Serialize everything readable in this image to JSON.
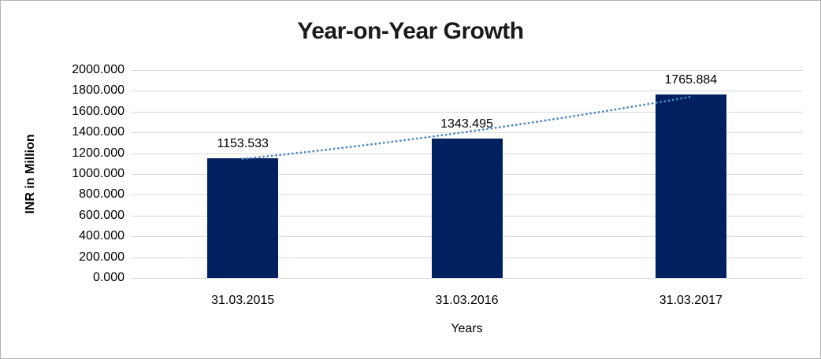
{
  "chart_data": {
    "type": "bar",
    "title": "Year-on-Year Growth",
    "xlabel": "Years",
    "ylabel": "INR in Million",
    "categories": [
      "31.03.2015",
      "31.03.2016",
      "31.03.2017"
    ],
    "series": [
      {
        "name": "INR in Million",
        "values": [
          1153.533,
          1343.495,
          1765.884
        ]
      }
    ],
    "data_labels": [
      "1153.533",
      "1343.495",
      "1765.884"
    ],
    "ylim": [
      0,
      2000
    ],
    "ytick_step": 200,
    "ytick_decimals": 3,
    "grid": "horizontal-major",
    "legend_position": "none",
    "trendline": {
      "style": "dotted",
      "shape": "slightly-curved-rising"
    },
    "colors": {
      "bar_fill": "#002060",
      "gridline": "#d9d9d9",
      "axis_line": "#c3c3c3",
      "trendline": "#4e86c8",
      "text": "#000000",
      "title": "#1a1a1a",
      "background": "#ffffff",
      "border": "#b3b3b3"
    }
  }
}
